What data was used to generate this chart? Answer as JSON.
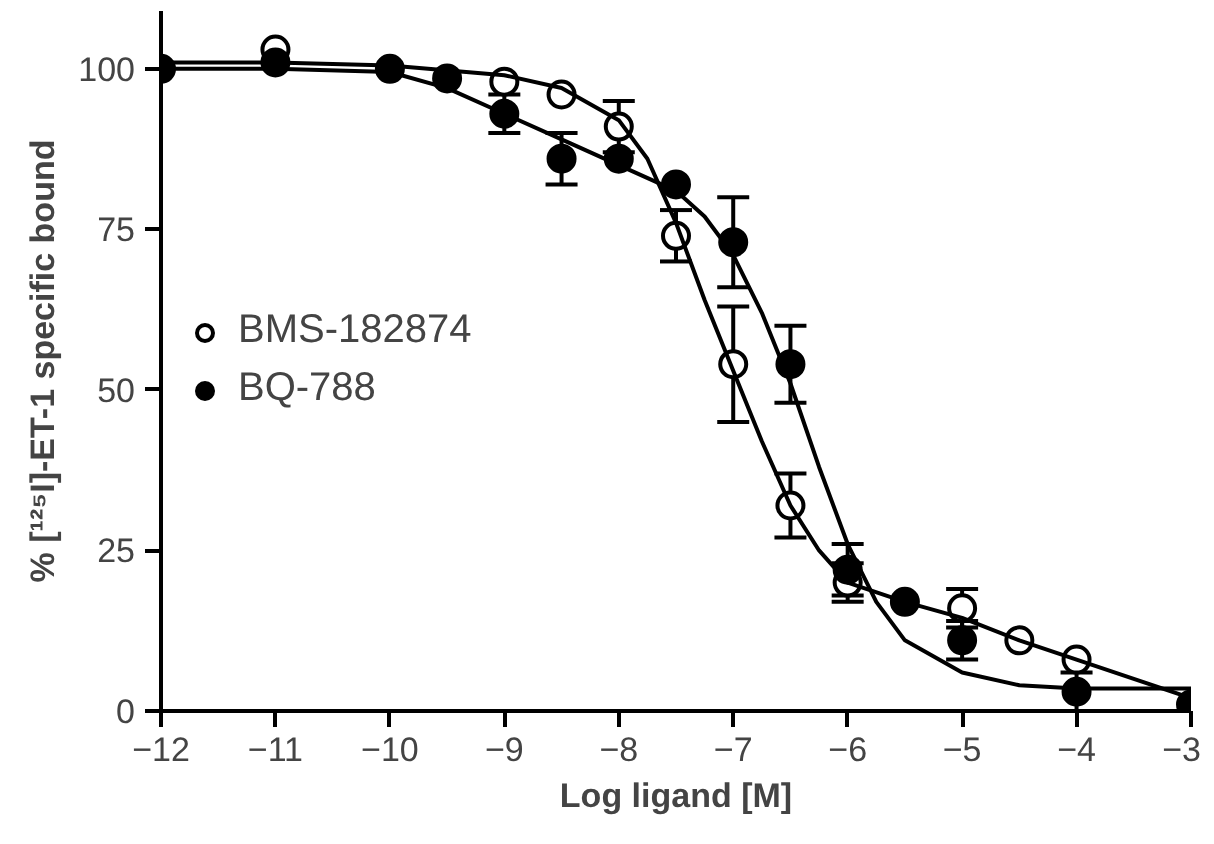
{
  "chart_data": {
    "type": "scatter",
    "xlabel": "Log ligand [M]",
    "ylabel": "% [¹²⁵I]-ET-1 specific bound",
    "xlim": [
      -12,
      -3
    ],
    "ylim": [
      0,
      109
    ],
    "xticks": [
      -12,
      -11,
      -10,
      -9,
      -8,
      -7,
      -6,
      -5,
      -4,
      -3
    ],
    "yticks": [
      0,
      25,
      50,
      75,
      100
    ],
    "grid": false,
    "legend": "left",
    "series": [
      {
        "name": "BMS-182874",
        "color": "#000000",
        "marker": "circle",
        "x": [
          -11,
          -9,
          -8.5,
          -8,
          -7.5,
          -7,
          -6.5,
          -6,
          -5,
          -4.5,
          -4
        ],
        "values": [
          103,
          98,
          96,
          91,
          74,
          54,
          32,
          20,
          16,
          11,
          8
        ],
        "errors": [
          null,
          null,
          null,
          4,
          4,
          9,
          5,
          3,
          3,
          null,
          null
        ]
      },
      {
        "name": "BQ-788",
        "color": "#000000",
        "marker": "circle",
        "x": [
          -12,
          -11,
          -10,
          -9.5,
          -9,
          -8.5,
          -8,
          -7.5,
          -7,
          -6.5,
          -6,
          -5.5,
          -5,
          -4,
          -3
        ],
        "values": [
          100,
          101,
          100,
          98.5,
          93,
          86,
          86,
          82,
          73,
          54,
          22,
          17,
          11,
          3,
          1
        ],
        "errors": [
          null,
          null,
          null,
          null,
          3,
          4,
          null,
          null,
          7,
          6,
          4,
          null,
          3,
          3,
          null
        ]
      },
      {
        "type": "line",
        "color": "#000000",
        "x": [
          -12,
          -11,
          -10,
          -9,
          -8.5,
          -8,
          -7.75,
          -7.5,
          -7.25,
          -7,
          -6.75,
          -6.5,
          -6.25,
          -6,
          -5.5,
          -5,
          -4.5,
          -4,
          -3.5,
          -3
        ],
        "values": [
          101,
          101,
          100.5,
          99,
          97,
          92,
          86,
          76,
          64,
          53,
          42,
          32,
          25,
          20,
          17,
          14.5,
          11,
          8,
          5,
          2
        ]
      },
      {
        "type": "line",
        "color": "#000000",
        "x": [
          -12,
          -11,
          -10,
          -9.5,
          -9,
          -8.5,
          -8,
          -7.5,
          -7.25,
          -7,
          -6.75,
          -6.5,
          -6.25,
          -6,
          -5.75,
          -5.5,
          -5,
          -4.5,
          -4,
          -3
        ],
        "values": [
          100,
          100,
          99.5,
          97,
          93,
          89,
          85,
          81,
          77,
          71,
          62,
          51,
          38,
          26,
          17,
          11,
          6,
          4,
          3.5,
          3.5
        ]
      }
    ]
  }
}
